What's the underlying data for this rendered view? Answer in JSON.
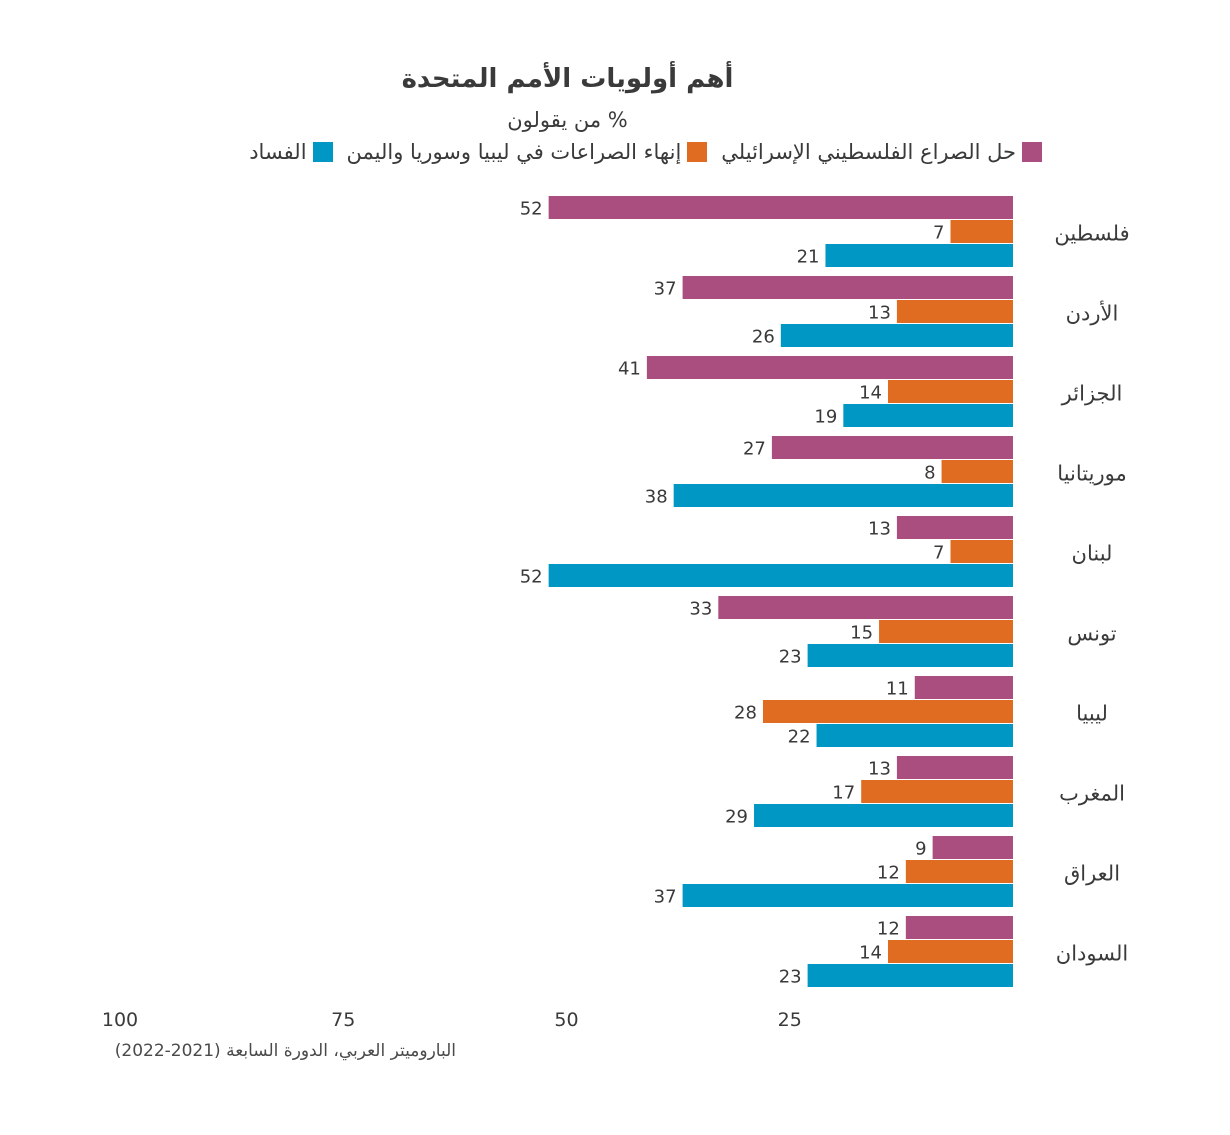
{
  "chart_data": {
    "type": "bar",
    "orientation": "horizontal",
    "title": "أهم أولويات الأمم المتحدة",
    "subtitle": "% من يقولون",
    "categories": [
      "فلسطين",
      "الأردن",
      "الجزائر",
      "موريتانيا",
      "لبنان",
      "تونس",
      "ليبيا",
      "المغرب",
      "العراق",
      "السودان"
    ],
    "series": [
      {
        "name": "حل الصراع الفلسطيني الإسرائيلي",
        "color": "#a94e7e",
        "values": [
          52,
          37,
          41,
          27,
          13,
          33,
          11,
          13,
          9,
          12
        ]
      },
      {
        "name": "إنهاء الصراعات في ليبيا وسوريا واليمن",
        "color": "#e06c21",
        "values": [
          7,
          13,
          14,
          8,
          7,
          15,
          28,
          17,
          12,
          14
        ]
      },
      {
        "name": "الفساد",
        "color": "#0097c4",
        "values": [
          21,
          26,
          19,
          38,
          52,
          23,
          22,
          29,
          37,
          23
        ]
      }
    ],
    "xlim": [
      0,
      100
    ],
    "x_ticks": [
      100,
      75,
      50,
      25
    ],
    "x_direction": "reversed",
    "grid": false,
    "legend_position": "top",
    "source": "الباروميتر العربي، الدورة السابعة (2021-2022)"
  }
}
